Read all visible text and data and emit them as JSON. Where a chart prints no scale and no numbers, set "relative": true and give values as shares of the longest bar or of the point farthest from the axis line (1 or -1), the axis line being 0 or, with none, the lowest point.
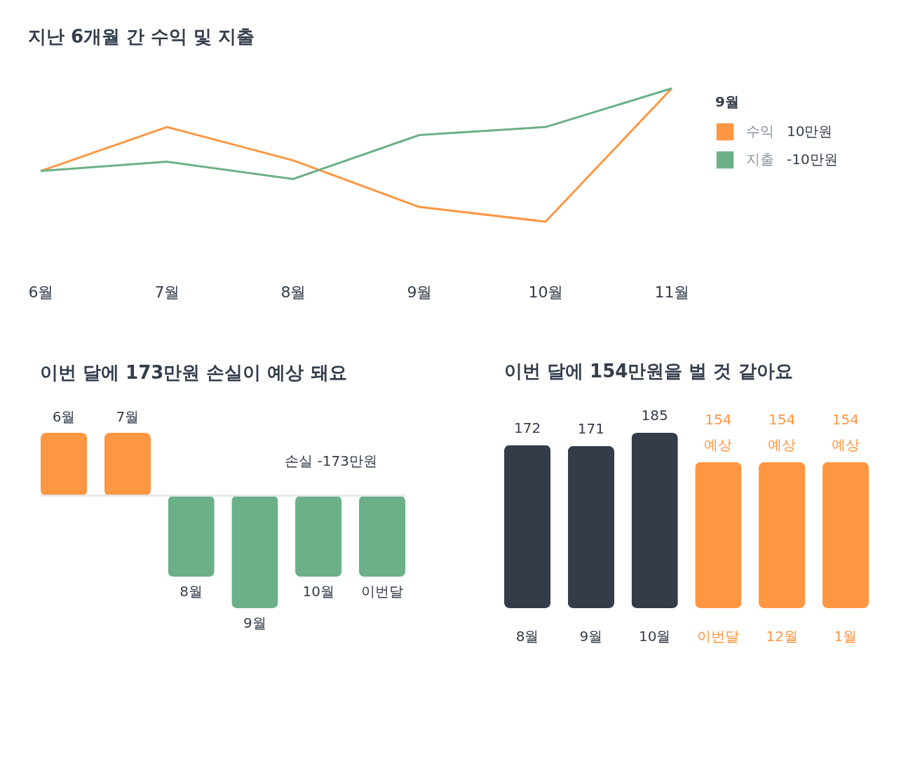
{
  "chart_data": [
    {
      "type": "line",
      "title": "지난 6개월 간 수익 및 지출",
      "relative": true,
      "categories": [
        "6월",
        "7월",
        "8월",
        "9월",
        "10월",
        "11월"
      ],
      "series": [
        {
          "name": "수익",
          "color": "#ff9642",
          "values": [
            0.38,
            0.71,
            0.46,
            0.11,
            0,
            1
          ]
        },
        {
          "name": "지출",
          "color": "#6bb087",
          "values": [
            0.38,
            0.45,
            0.32,
            0.65,
            0.71,
            1
          ]
        }
      ],
      "annotations": [
        "9월",
        "10만원",
        "-10만원"
      ],
      "legend": "right",
      "marker": "none",
      "line_style": "solid"
    },
    {
      "type": "bar",
      "title": "이번 달에 173만원 손실이 예상 돼요",
      "relative": true,
      "categories": [
        "6월",
        "7월",
        "8월",
        "9월",
        "10월",
        "이번달"
      ],
      "values": [
        0.56,
        0.56,
        -0.72,
        -1,
        -0.72,
        -0.72
      ],
      "colors": [
        "#ff9642",
        "#ff9642",
        "#6bb087",
        "#6bb087",
        "#6bb087",
        "#6bb087"
      ],
      "annotations": [
        "손실 -173만원"
      ],
      "tick_labels": false
    },
    {
      "type": "bar",
      "title": "이번 달에 154만원을 벌 것 같아요",
      "categories": [
        "8월",
        "9월",
        "10월",
        "이번달",
        "12월",
        "1월"
      ],
      "values": [
        172,
        171,
        185,
        154,
        154,
        154
      ],
      "colors": [
        "#343c4a",
        "#343c4a",
        "#343c4a",
        "#ff9642",
        "#ff9642",
        "#ff9642"
      ],
      "value_labels": [
        "172",
        "171",
        "185",
        "154\n예상",
        "154\n예상",
        "154\n예상"
      ],
      "tick_labels": "x"
    }
  ]
}
